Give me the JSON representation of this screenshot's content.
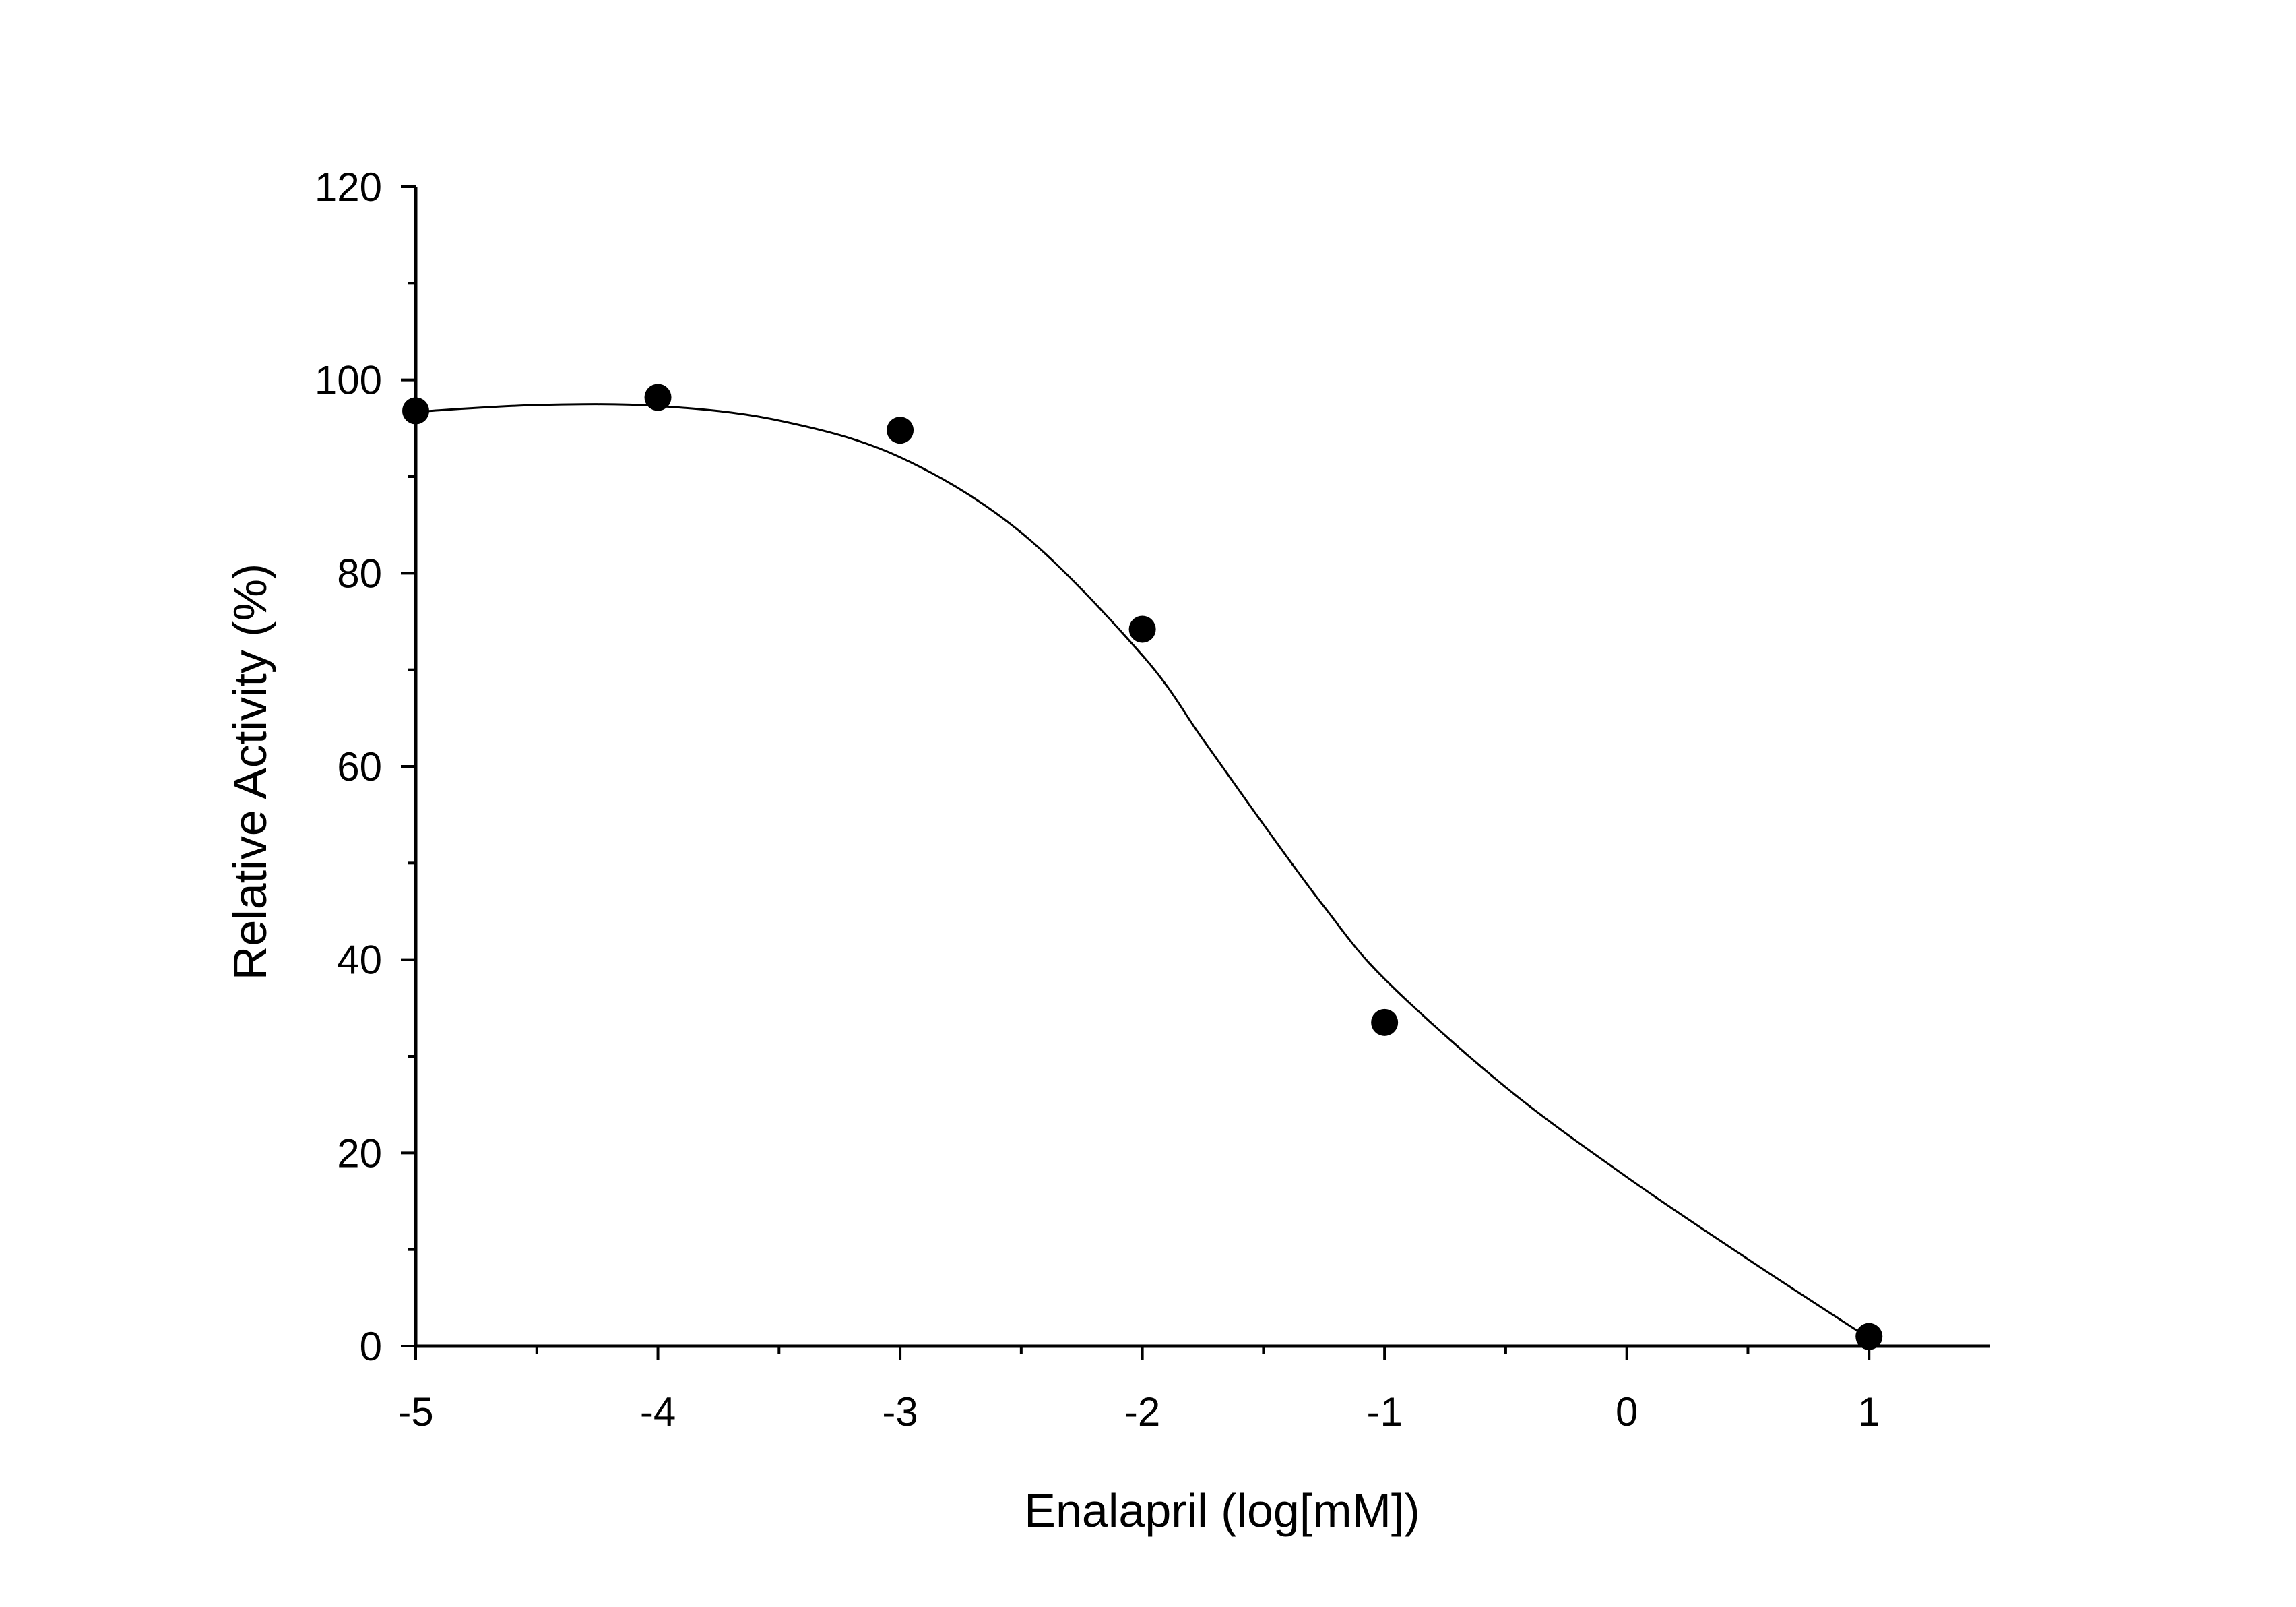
{
  "chart_data": {
    "type": "scatter",
    "title": "",
    "xlabel": "Enalapril (log[mM])",
    "ylabel": "Relative Activity (%)",
    "xlim": [
      -5,
      1.5
    ],
    "ylim": [
      0,
      120
    ],
    "x_ticks": [
      -5,
      -4,
      -3,
      -2,
      -1,
      0,
      1
    ],
    "y_ticks": [
      0,
      20,
      40,
      60,
      80,
      100,
      120
    ],
    "grid": false,
    "series": [
      {
        "points": [
          {
            "x": -5,
            "y": 96.8
          },
          {
            "x": -4,
            "y": 98.2
          },
          {
            "x": -3,
            "y": 94.8
          },
          {
            "x": -2,
            "y": 74.2
          },
          {
            "x": -1,
            "y": 33.5
          },
          {
            "x": 1,
            "y": 1.0
          }
        ]
      }
    ],
    "fit_curve": [
      {
        "x": -5.0,
        "y": 96.7
      },
      {
        "x": -4.5,
        "y": 97.4
      },
      {
        "x": -4.0,
        "y": 97.3
      },
      {
        "x": -3.5,
        "y": 95.8
      },
      {
        "x": -3.0,
        "y": 92.0
      },
      {
        "x": -2.5,
        "y": 84.2
      },
      {
        "x": -2.0,
        "y": 71.5
      },
      {
        "x": -1.75,
        "y": 62.8
      },
      {
        "x": -1.5,
        "y": 54.0
      },
      {
        "x": -1.25,
        "y": 45.5
      },
      {
        "x": -1.0,
        "y": 38.0
      },
      {
        "x": -0.5,
        "y": 26.8
      },
      {
        "x": 0.0,
        "y": 17.5
      },
      {
        "x": 0.5,
        "y": 9.0
      },
      {
        "x": 1.0,
        "y": 0.8
      }
    ],
    "colors": {
      "points": "#000000",
      "curve": "#000000",
      "axes": "#000000"
    }
  }
}
